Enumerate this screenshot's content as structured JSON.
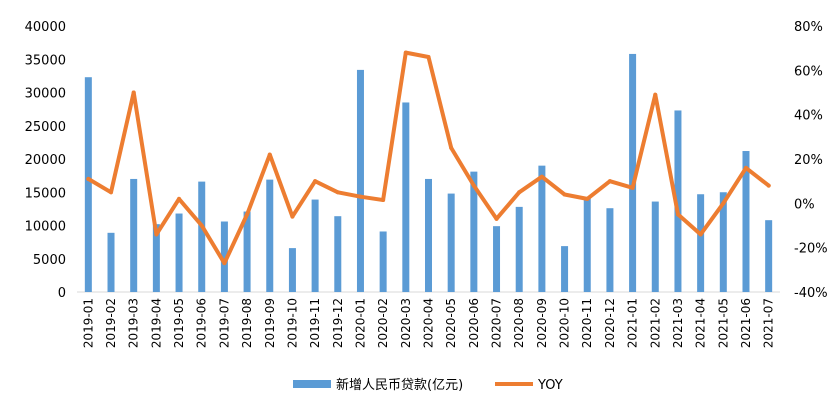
{
  "chart_data": {
    "type": "bar",
    "categories": [
      "2019-01",
      "2019-02",
      "2019-03",
      "2019-04",
      "2019-05",
      "2019-06",
      "2019-07",
      "2019-08",
      "2019-09",
      "2019-10",
      "2019-11",
      "2019-12",
      "2020-01",
      "2020-02",
      "2020-03",
      "2020-04",
      "2020-05",
      "2020-06",
      "2020-07",
      "2020-08",
      "2020-09",
      "2020-10",
      "2020-11",
      "2020-12",
      "2021-01",
      "2021-02",
      "2021-03",
      "2021-04",
      "2021-05",
      "2021-06",
      "2021-07"
    ],
    "series": [
      {
        "name": "新增人民币贷款(亿元)",
        "type": "bar",
        "axis": "left",
        "color": "#5B9BD5",
        "values": [
          32300,
          8900,
          17000,
          10200,
          11800,
          16600,
          10600,
          12100,
          16900,
          6600,
          13900,
          11400,
          33400,
          9100,
          28500,
          17000,
          14800,
          18100,
          9900,
          12800,
          19000,
          6900,
          14300,
          12600,
          35800,
          13600,
          27300,
          14700,
          15000,
          21200,
          10800
        ]
      },
      {
        "name": "YOY",
        "type": "line",
        "axis": "right",
        "color": "#ED7D31",
        "values": [
          11,
          5,
          50,
          -14,
          2,
          -10,
          -27,
          -5,
          22,
          -6,
          10,
          5,
          3,
          1.5,
          68,
          66,
          25,
          8,
          -7,
          5,
          12,
          4,
          2,
          10,
          7,
          49,
          -5,
          -14,
          0,
          16,
          8
        ]
      }
    ],
    "y_left": {
      "ylim": [
        0,
        40000
      ],
      "ticks": [
        "0",
        "5000",
        "10000",
        "15000",
        "20000",
        "25000",
        "30000",
        "35000",
        "40000"
      ]
    },
    "y_right": {
      "ylim": [
        -40,
        80
      ],
      "ticks": [
        "-40%",
        "-20%",
        "0%",
        "20%",
        "40%",
        "60%",
        "80%"
      ]
    },
    "legend": {
      "position": "bottom",
      "entries": [
        "新增人民币贷款(亿元)",
        "YOY"
      ]
    },
    "grid": false
  }
}
